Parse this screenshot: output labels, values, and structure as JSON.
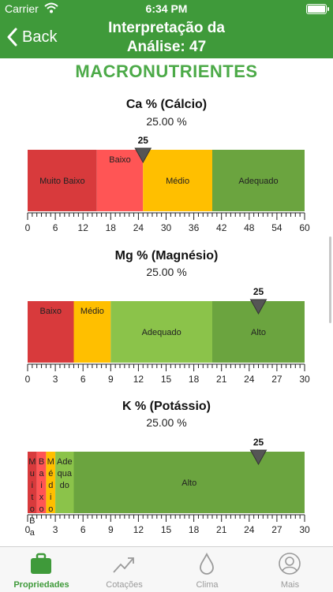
{
  "status": {
    "carrier": "Carrier",
    "time": "6:34 PM"
  },
  "nav": {
    "back_label": "Back",
    "title": "Interpretação da Análise: 47"
  },
  "section_title": "MACRONUTRIENTES",
  "chart_data": [
    {
      "type": "bar",
      "title": "Ca % (Cálcio)",
      "value_label": "25.00 %",
      "marker": 25,
      "xlim": [
        0,
        60
      ],
      "ticks": [
        0,
        6,
        12,
        18,
        24,
        30,
        36,
        42,
        48,
        54,
        60
      ],
      "ranges": [
        {
          "label": "Muito Baixo",
          "from": 0,
          "to": 15,
          "color": "#d83a3c"
        },
        {
          "label": "Baixo",
          "from": 15,
          "to": 25,
          "color": "#ff5555"
        },
        {
          "label": "Médio",
          "from": 25,
          "to": 40,
          "color": "#ffbf00"
        },
        {
          "label": "Adequado",
          "from": 40,
          "to": 60,
          "color": "#6ba43f"
        }
      ]
    },
    {
      "type": "bar",
      "title": "Mg % (Magnésio)",
      "value_label": "25.00 %",
      "marker": 25,
      "xlim": [
        0,
        30
      ],
      "ticks": [
        0,
        3,
        6,
        9,
        12,
        15,
        18,
        21,
        24,
        27,
        30
      ],
      "ranges": [
        {
          "label": "Baixo",
          "from": 0,
          "to": 5,
          "color": "#d83a3c"
        },
        {
          "label": "Médio",
          "from": 5,
          "to": 9,
          "color": "#ffbf00"
        },
        {
          "label": "Adequado",
          "from": 9,
          "to": 20,
          "color": "#8bc34a"
        },
        {
          "label": "Alto",
          "from": 20,
          "to": 30,
          "color": "#6ba43f"
        }
      ]
    },
    {
      "type": "bar",
      "title": "K % (Potássio)",
      "value_label": "25.00 %",
      "marker": 25,
      "xlim": [
        0,
        30
      ],
      "ticks": [
        0,
        3,
        6,
        9,
        12,
        15,
        18,
        21,
        24,
        27,
        30
      ],
      "ranges": [
        {
          "label": "Muito Baixo",
          "from": 0,
          "to": 1,
          "color": "#d83a3c"
        },
        {
          "label": "Baixo",
          "from": 1,
          "to": 2,
          "color": "#ff5555"
        },
        {
          "label": "Médio",
          "from": 2,
          "to": 3,
          "color": "#ffbf00"
        },
        {
          "label": "Adequado",
          "from": 3,
          "to": 5,
          "color": "#8bc34a"
        },
        {
          "label": "Alto",
          "from": 5,
          "to": 30,
          "color": "#6ba43f"
        }
      ]
    }
  ],
  "tabs": [
    {
      "label": "Propriedades",
      "icon": "briefcase-icon",
      "active": true
    },
    {
      "label": "Cotações",
      "icon": "trending-icon",
      "active": false
    },
    {
      "label": "Clima",
      "icon": "drop-icon",
      "active": false
    },
    {
      "label": "Mais",
      "icon": "user-icon",
      "active": false
    }
  ],
  "colors": {
    "brand": "#3f9a3a",
    "tab_inactive": "#9a9a9a"
  }
}
